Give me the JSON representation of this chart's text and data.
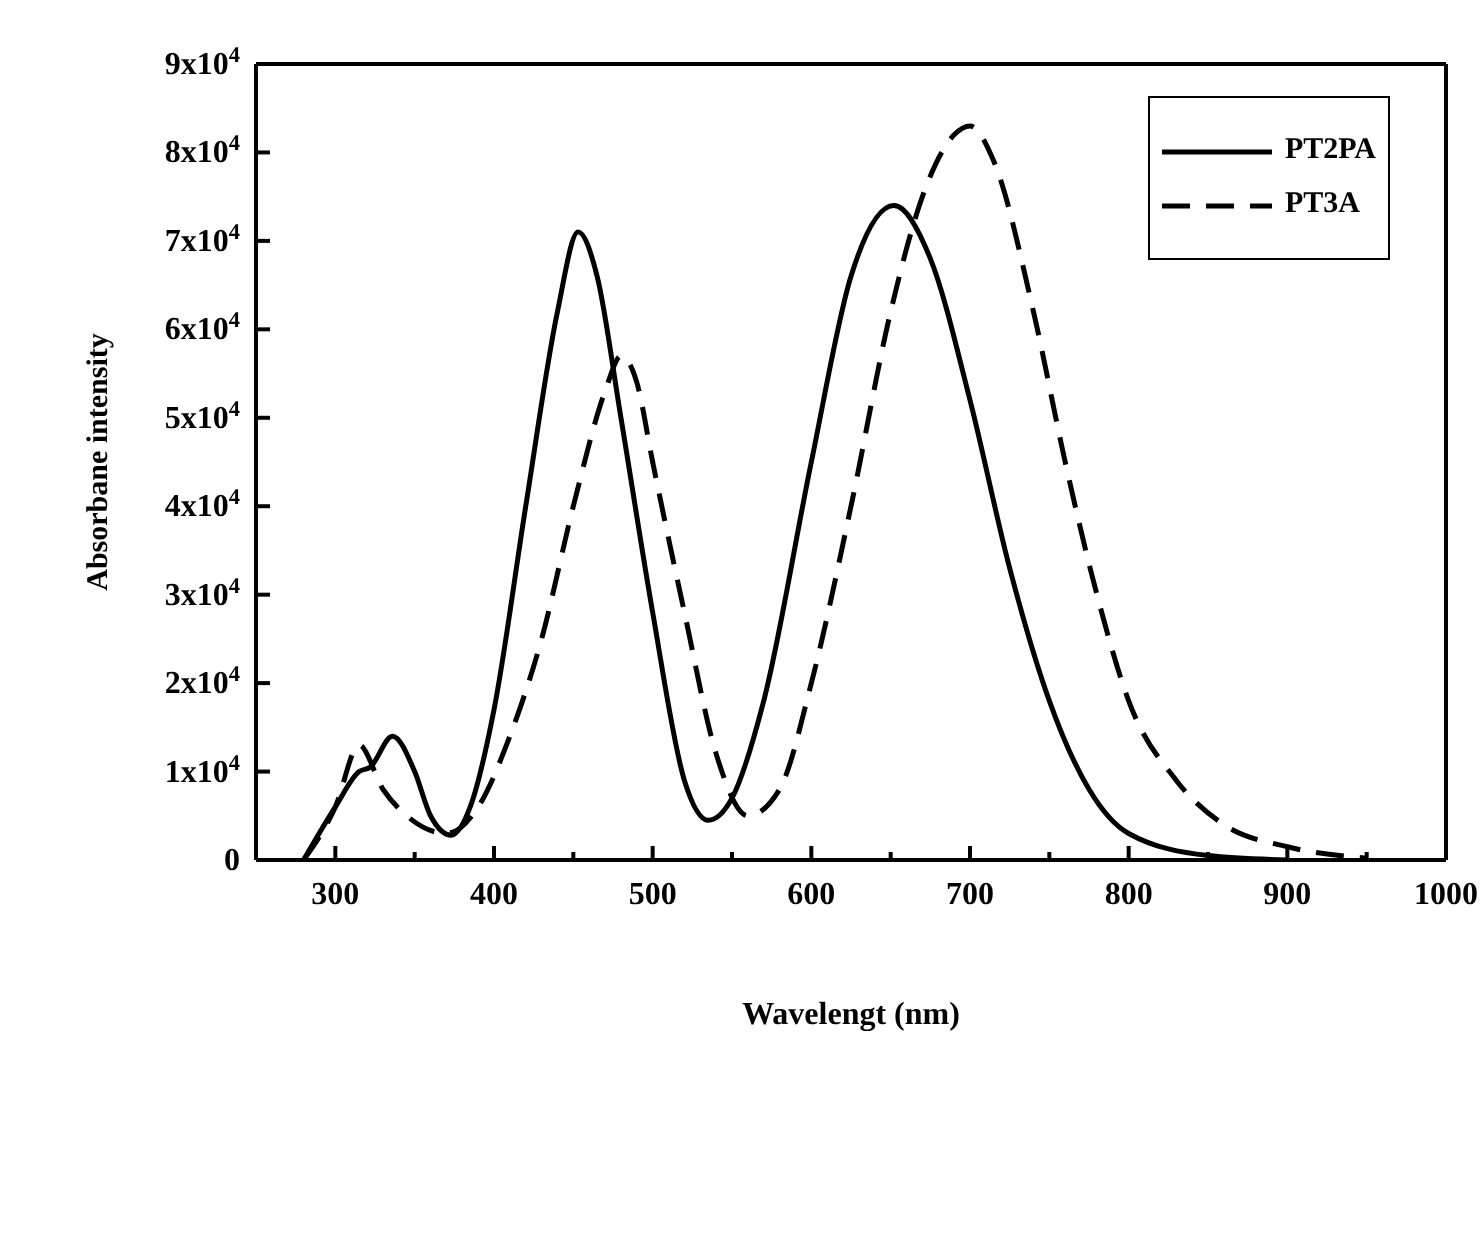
{
  "chart_data": {
    "type": "line",
    "xlabel": "Wavelengt (nm)",
    "ylabel": "Absorbane intensity",
    "xlim": [
      250,
      1000
    ],
    "xticks": [
      {
        "value": 250,
        "label": null
      },
      300,
      {
        "value": 350,
        "label": null
      },
      400,
      {
        "value": 450,
        "label": null
      },
      500,
      {
        "value": 550,
        "label": null
      },
      600,
      {
        "value": 650,
        "label": null
      },
      700,
      {
        "value": 750,
        "label": null
      },
      800,
      {
        "value": 850,
        "label": null
      },
      900,
      {
        "value": 950,
        "label": null
      },
      1000
    ],
    "ylim": [
      0,
      90000
    ],
    "yticks": [
      {
        "value": 0,
        "label": "0"
      },
      {
        "value": 10000,
        "label": "1x10$^{4}$"
      },
      {
        "value": 20000,
        "label": "2x10$^{4}$"
      },
      {
        "value": 30000,
        "label": "3x10$^{4}$"
      },
      {
        "value": 40000,
        "label": "4x10$^{4}$"
      },
      {
        "value": 50000,
        "label": "5x10$^{4}$"
      },
      {
        "value": 60000,
        "label": "6x10$^{4}$"
      },
      {
        "value": 70000,
        "label": "7x10$^{4}$"
      },
      {
        "value": 80000,
        "label": "8x10$^{4}$"
      },
      {
        "value": 90000,
        "label": "9x10$^{4}$"
      }
    ],
    "legend": "top right",
    "grid": false,
    "marker": "none",
    "series": [
      {
        "name": "PT2PA",
        "color": "#000000",
        "line_style": "solid",
        "x": [
          280,
          300,
          315,
          322,
          336,
          350,
          360,
          373,
          385,
          400,
          420,
          440,
          453,
          465,
          480,
          500,
          520,
          535,
          550,
          570,
          600,
          625,
          652,
          675,
          700,
          725,
          750,
          775,
          800,
          850,
          900
        ],
        "values": [
          0,
          6000,
          10000,
          10500,
          14000,
          10000,
          5000,
          2800,
          6000,
          17000,
          40000,
          62000,
          71000,
          66000,
          50000,
          28000,
          9000,
          4500,
          7000,
          18000,
          45000,
          66000,
          74000,
          68000,
          52000,
          33000,
          18000,
          8000,
          3000,
          500,
          0
        ]
      },
      {
        "name": "PT3A",
        "color": "#000000",
        "line_style": "dashed",
        "x": [
          280,
          300,
          315,
          330,
          345,
          370,
          390,
          410,
          430,
          450,
          470,
          480,
          490,
          500,
          520,
          540,
          560,
          580,
          600,
          625,
          650,
          670,
          690,
          700,
          715,
          740,
          760,
          780,
          800,
          830,
          860,
          900,
          950
        ],
        "values": [
          0,
          6000,
          13000,
          8000,
          5000,
          3000,
          6000,
          14000,
          25000,
          40000,
          53000,
          57000,
          54000,
          45000,
          28000,
          12000,
          5000,
          8000,
          20000,
          40000,
          62000,
          75000,
          82000,
          83000,
          79000,
          62000,
          45000,
          30000,
          18000,
          9000,
          4000,
          1500,
          200
        ]
      }
    ]
  }
}
